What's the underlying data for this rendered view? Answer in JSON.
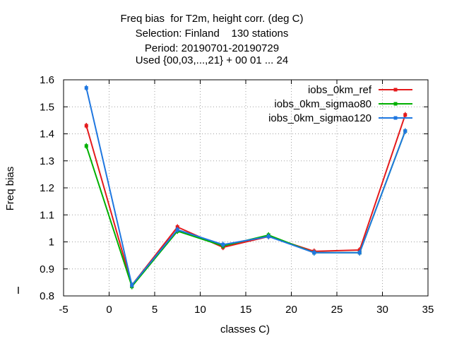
{
  "chart_data": {
    "type": "line",
    "title_lines": [
      "Freq bias  for T2m, height corr. (deg C)",
      "Selection: Finland    130 stations",
      "Period: 20190701-20190729",
      "Used {00,03,...,21} + 00 01 ... 24"
    ],
    "xlabel": "classes C)",
    "ylabel": "Freq bias",
    "xlim": [
      -5,
      35
    ],
    "ylim": [
      0.8,
      1.6
    ],
    "xticks": [
      -5,
      0,
      5,
      10,
      15,
      20,
      25,
      30,
      35
    ],
    "yticks": [
      0.8,
      0.9,
      1.0,
      1.1,
      1.2,
      1.3,
      1.4,
      1.5,
      1.6
    ],
    "xtick_labels": [
      "-5",
      "0",
      "5",
      "10",
      "15",
      "20",
      "25",
      "30",
      "35"
    ],
    "ytick_labels": [
      "0.8",
      "0.9",
      "1",
      "1.1",
      "1.2",
      "1.3",
      "1.4",
      "1.5",
      "1.6"
    ],
    "grid": true,
    "legend_position": "top-right",
    "x": [
      -2.5,
      2.5,
      7.5,
      12.5,
      17.5,
      22.5,
      27.5,
      32.5
    ],
    "series": [
      {
        "name": "iobs_0km_ref",
        "color": "#e41a1c",
        "values": [
          1.43,
          0.84,
          1.055,
          0.98,
          1.02,
          0.965,
          0.97,
          1.47
        ]
      },
      {
        "name": "iobs_0km_sigmao80",
        "color": "#00b000",
        "values": [
          1.355,
          0.835,
          1.04,
          0.985,
          1.025,
          0.96,
          0.96,
          1.41
        ]
      },
      {
        "name": "iobs_0km_sigmao120",
        "color": "#1f77e0",
        "values": [
          1.57,
          0.84,
          1.045,
          0.99,
          1.02,
          0.96,
          0.96,
          1.41
        ]
      }
    ],
    "stray_mark": "I"
  }
}
